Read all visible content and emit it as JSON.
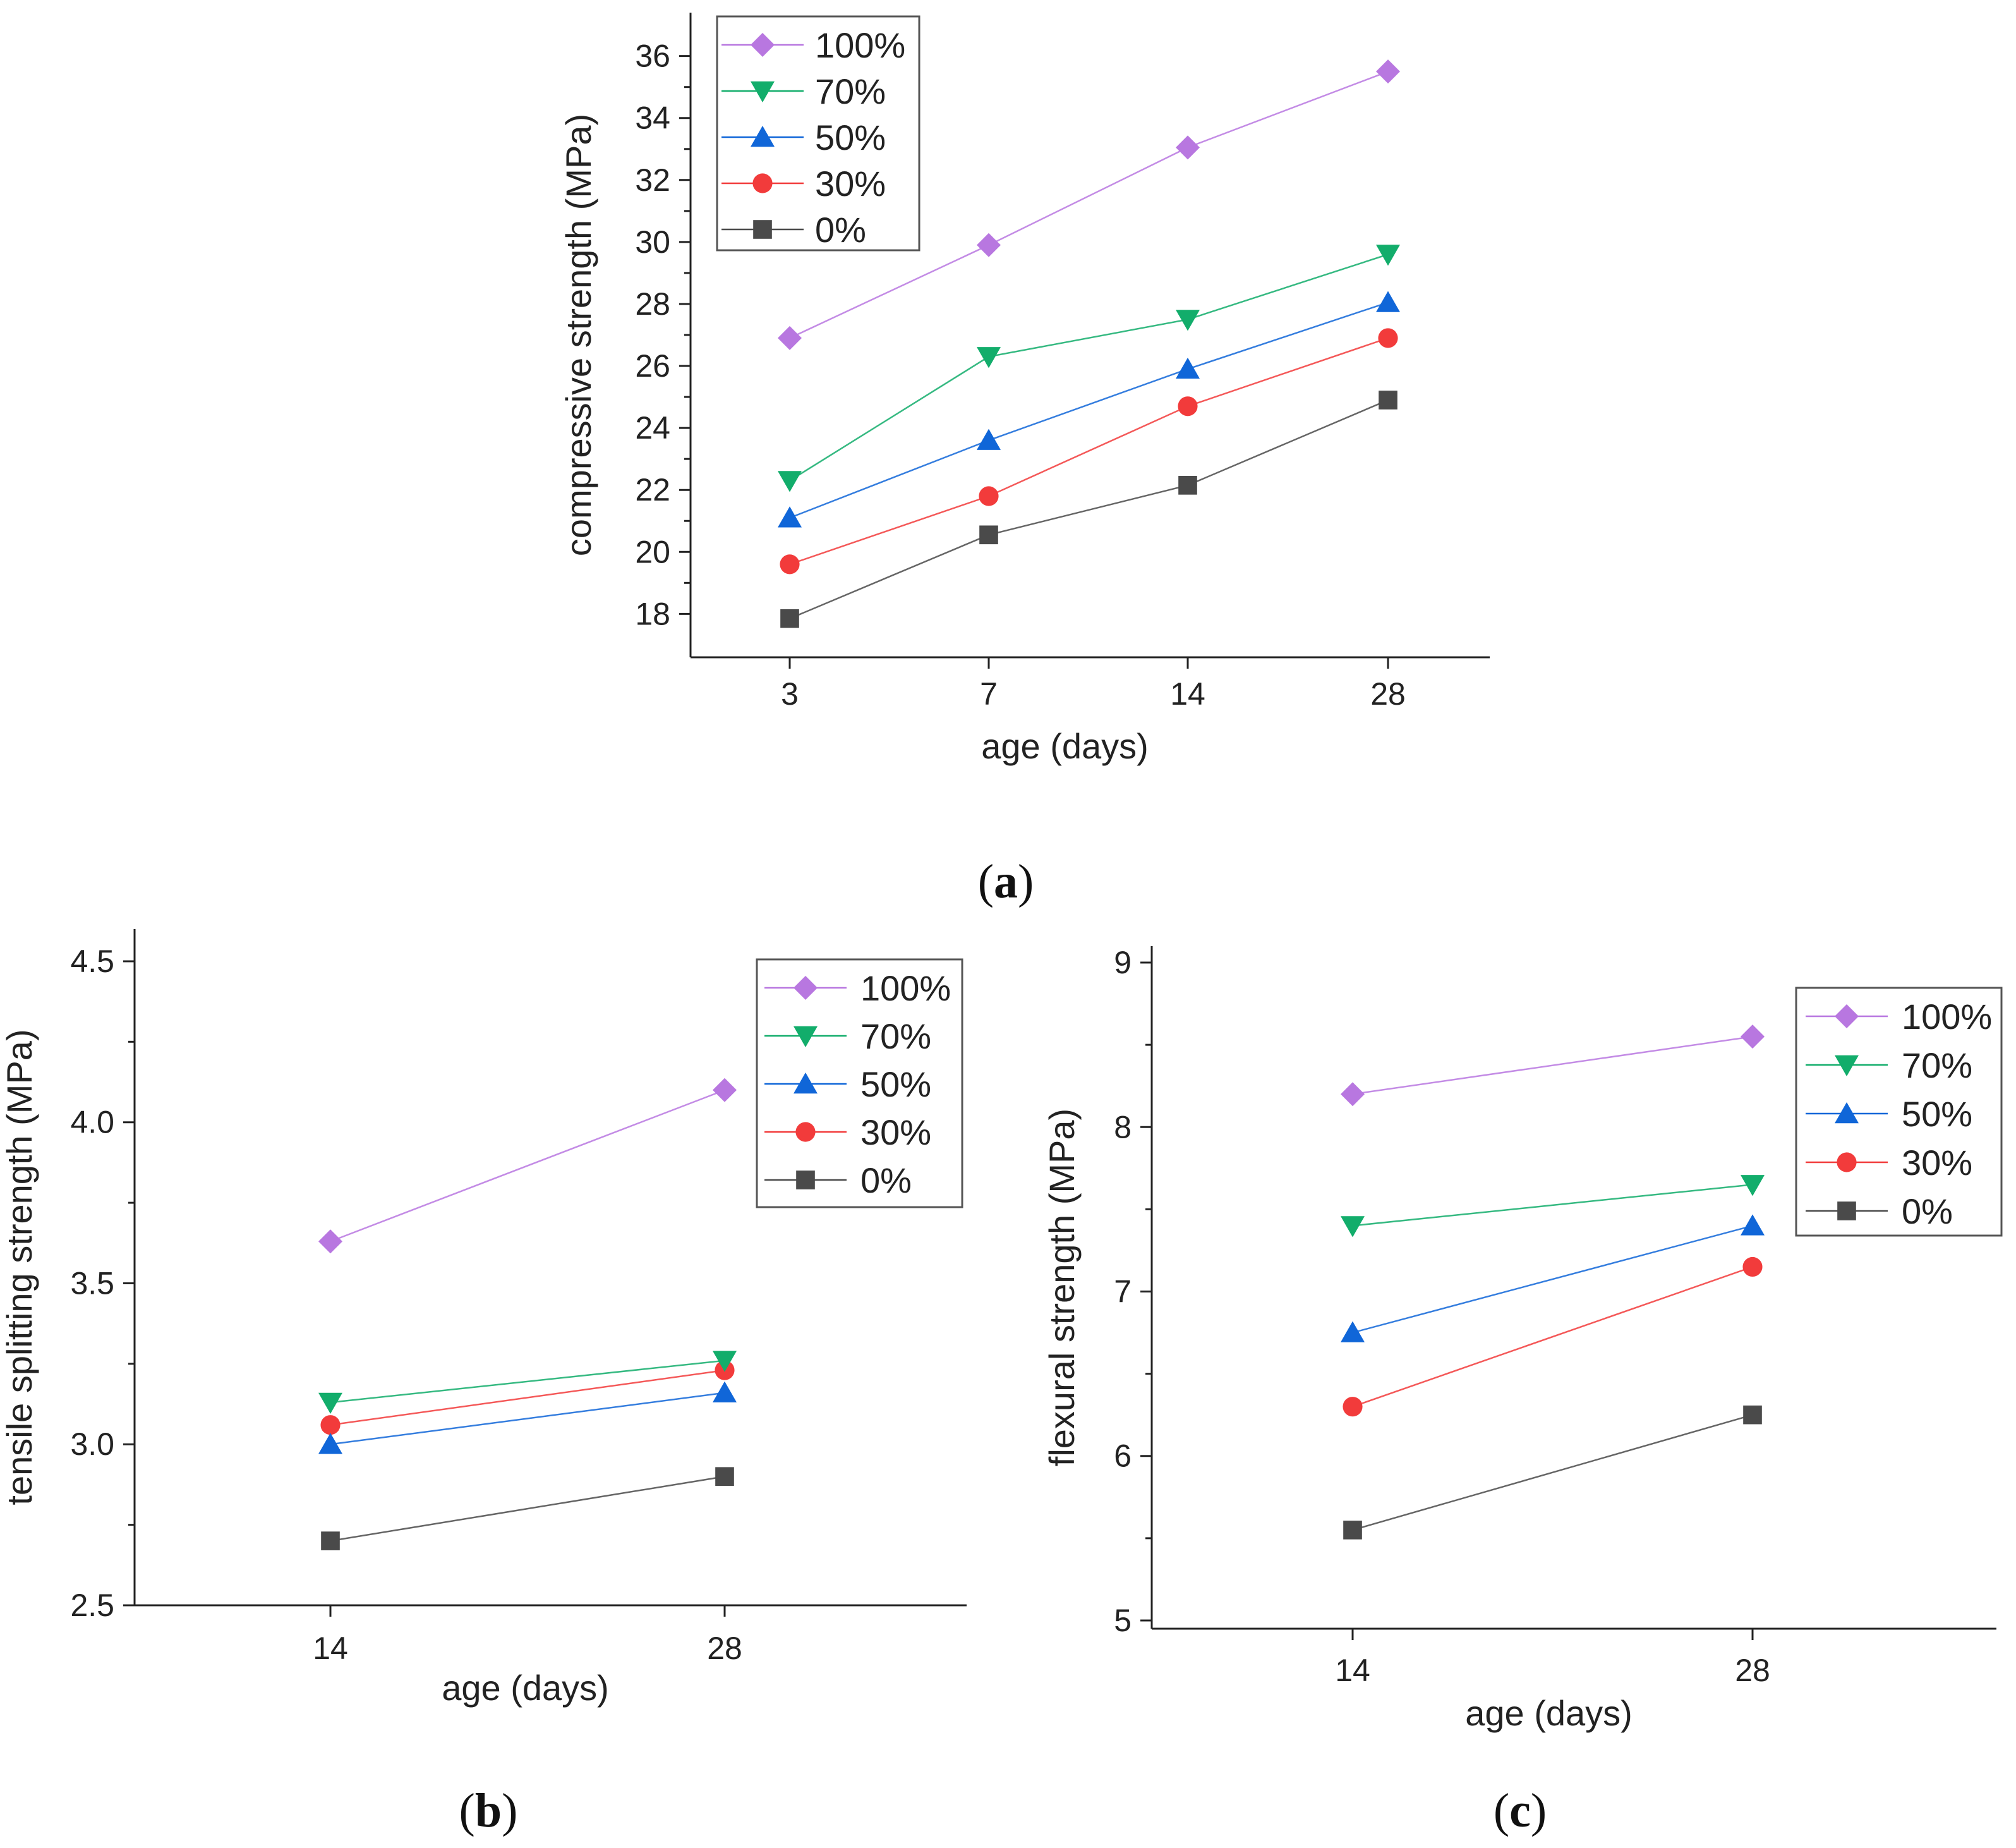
{
  "colors": {
    "100%": "#b877e0",
    "70%": "#12ad6b",
    "50%": "#1066d8",
    "30%": "#f23b3b",
    "0%": "#4a4a4a"
  },
  "markers": {
    "100%": "diamond",
    "70%": "triangle-down",
    "50%": "triangle-up",
    "30%": "circle",
    "0%": "square"
  },
  "chart_data": [
    {
      "id": "a",
      "type": "line",
      "panel_label": "a",
      "xlabel": "age (days)",
      "ylabel": "compressive strength (MPa)",
      "categories": [
        "3",
        "7",
        "14",
        "28"
      ],
      "ylim": [
        16.6,
        37.4
      ],
      "yticks": [
        18,
        20,
        22,
        24,
        26,
        28,
        30,
        32,
        34,
        36
      ],
      "legend_position": "top-left",
      "series": [
        {
          "name": "100%",
          "values": [
            26.9,
            29.9,
            33.05,
            35.5
          ]
        },
        {
          "name": "70%",
          "values": [
            22.3,
            26.3,
            27.5,
            29.6
          ]
        },
        {
          "name": "50%",
          "values": [
            21.1,
            23.6,
            25.9,
            28.05
          ]
        },
        {
          "name": "30%",
          "values": [
            19.6,
            21.8,
            24.7,
            26.9
          ]
        },
        {
          "name": "0%",
          "values": [
            17.85,
            20.55,
            22.15,
            24.9
          ]
        }
      ]
    },
    {
      "id": "b",
      "type": "line",
      "panel_label": "b",
      "xlabel": "age (days)",
      "ylabel": "tensile splitting strength (MPa)",
      "categories": [
        "14",
        "28"
      ],
      "ylim": [
        2.5,
        4.6
      ],
      "yticks": [
        "2.5",
        "3.0",
        "3.5",
        "4.0",
        "4.5"
      ],
      "legend_position": "top-right",
      "series": [
        {
          "name": "100%",
          "values": [
            3.63,
            4.1
          ]
        },
        {
          "name": "70%",
          "values": [
            3.13,
            3.26
          ]
        },
        {
          "name": "50%",
          "values": [
            3.0,
            3.16
          ]
        },
        {
          "name": "30%",
          "values": [
            3.06,
            3.23
          ]
        },
        {
          "name": "0%",
          "values": [
            2.7,
            2.9
          ]
        }
      ]
    },
    {
      "id": "c",
      "type": "line",
      "panel_label": "c",
      "xlabel": "age (days)",
      "ylabel": "flexural strength (MPa)",
      "categories": [
        "14",
        "28"
      ],
      "ylim": [
        4.95,
        9.1
      ],
      "yticks": [
        "5",
        "6",
        "7",
        "8",
        "9"
      ],
      "legend_position": "top-right",
      "series": [
        {
          "name": "100%",
          "values": [
            8.2,
            8.55
          ]
        },
        {
          "name": "70%",
          "values": [
            7.4,
            7.65
          ]
        },
        {
          "name": "50%",
          "values": [
            6.75,
            7.4
          ]
        },
        {
          "name": "30%",
          "values": [
            6.3,
            7.15
          ]
        },
        {
          "name": "0%",
          "values": [
            5.55,
            6.25
          ]
        }
      ]
    }
  ]
}
